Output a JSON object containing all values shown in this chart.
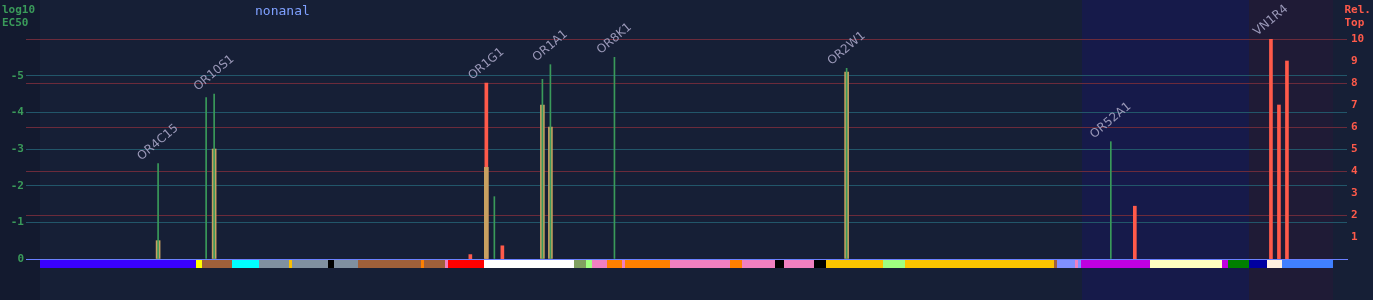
{
  "chart_data": {
    "type": "bar",
    "title": "nonanal",
    "ylabel": "log10 EC50",
    "y2label": "Rel. Top",
    "categories": [
      null,
      null,
      null,
      null,
      null,
      null,
      null,
      null,
      null,
      null,
      null,
      null,
      null,
      null,
      null,
      null,
      null,
      null,
      null,
      null,
      null,
      null,
      null,
      null,
      null,
      null,
      null,
      null,
      null,
      null,
      null,
      null,
      null,
      null,
      null,
      null,
      null,
      null,
      null,
      null,
      null,
      null,
      null,
      null,
      null,
      null,
      null,
      null,
      null,
      null,
      null,
      null,
      null,
      null,
      null,
      null,
      null,
      null,
      null,
      null,
      null,
      null,
      null,
      null,
      null,
      null,
      null,
      null,
      null,
      null,
      null,
      null,
      null,
      null,
      null,
      null,
      null,
      null,
      null,
      null,
      null,
      null,
      null,
      null,
      null,
      null,
      null,
      null,
      null,
      null,
      null,
      null,
      null,
      null,
      null,
      null,
      null,
      null,
      null,
      null,
      null,
      null,
      null,
      null,
      null,
      null,
      null,
      null,
      null,
      null,
      null,
      null,
      null,
      null,
      null,
      null,
      null,
      null,
      null,
      null,
      null,
      null,
      null,
      null,
      null,
      null,
      null,
      null,
      null,
      null,
      null,
      null,
      null,
      null,
      null,
      null,
      null,
      null,
      null,
      null,
      null,
      null,
      null,
      null,
      null,
      null,
      null,
      null,
      null,
      null,
      null,
      null,
      null,
      null,
      null,
      null,
      null,
      null,
      null,
      null,
      null,
      null,
      null,
      null,
      null
    ],
    "series": [
      {
        "color": "#3a9a5a",
        "values": [
          null,
          null,
          null,
          null,
          null,
          null,
          null,
          null,
          null,
          null,
          null,
          null,
          null,
          null,
          null,
          null,
          -2.6,
          null,
          null,
          null,
          null,
          null,
          -4.4,
          -4.5,
          null,
          null,
          null,
          null,
          null,
          null,
          null,
          null,
          null,
          null,
          null,
          null,
          null,
          null,
          null,
          null,
          null,
          null,
          null,
          null,
          null,
          null,
          null,
          null,
          null,
          null,
          null,
          null,
          null,
          null,
          null,
          null,
          null,
          null,
          -1.7,
          null,
          null,
          null,
          null,
          null,
          -4.9,
          -5.3,
          null,
          null,
          null,
          null,
          null,
          null,
          null,
          -5.5,
          null,
          null,
          null,
          null,
          null,
          null,
          null,
          null,
          null,
          null,
          null,
          null,
          null,
          null,
          null,
          null,
          null,
          null,
          null,
          null,
          null,
          null,
          null,
          null,
          null,
          null,
          null,
          null,
          -5.2,
          null,
          null,
          null,
          null,
          null,
          null,
          null,
          null,
          null,
          null,
          null,
          null,
          null,
          null,
          null,
          null,
          null,
          null,
          null,
          null,
          null,
          null,
          null,
          null,
          null,
          null,
          null,
          null,
          null,
          null,
          null,
          null,
          -3.2,
          null,
          null,
          null,
          null,
          null,
          null,
          null,
          null,
          null,
          null,
          null,
          null,
          null,
          null,
          null,
          null,
          null,
          null,
          null,
          null,
          null,
          null,
          null,
          null,
          null,
          null,
          null,
          null,
          null
        ],
        "value_labels": [
          null,
          null,
          null,
          null,
          null,
          null,
          null,
          null,
          null,
          null,
          null,
          null,
          null,
          null,
          null,
          null,
          "OR4C15",
          null,
          null,
          null,
          null,
          null,
          null,
          "OR10S1",
          null,
          null,
          null,
          null,
          null,
          null,
          null,
          null,
          null,
          null,
          null,
          null,
          null,
          null,
          null,
          null,
          null,
          null,
          null,
          null,
          null,
          null,
          null,
          null,
          null,
          null,
          null,
          null,
          null,
          null,
          null,
          null,
          null,
          null,
          null,
          null,
          null,
          null,
          null,
          null,
          null,
          "OR1A1",
          null,
          null,
          null,
          null,
          null,
          null,
          null,
          "OR8K1",
          null,
          null,
          null,
          null,
          null,
          null,
          null,
          null,
          null,
          null,
          null,
          null,
          null,
          null,
          null,
          null,
          null,
          null,
          null,
          null,
          null,
          null,
          null,
          null,
          null,
          null,
          null,
          null,
          "OR2W1",
          null,
          null,
          null,
          null,
          null,
          null,
          null,
          null,
          null,
          null,
          null,
          null,
          null,
          null,
          null,
          null,
          null,
          null,
          null,
          null,
          null,
          null,
          null,
          null,
          null,
          null,
          null,
          null,
          null,
          null,
          null,
          null,
          "OR52A1",
          null,
          null,
          null,
          null,
          null,
          null,
          null,
          null,
          null,
          null,
          null,
          null,
          null,
          null,
          null,
          null,
          null,
          null,
          null,
          null,
          null,
          null,
          null,
          null,
          null,
          null,
          null,
          null,
          null
        ]
      },
      {
        "color": "#c8a060",
        "values": [
          null,
          null,
          null,
          null,
          null,
          null,
          null,
          null,
          null,
          null,
          null,
          null,
          null,
          null,
          null,
          null,
          -0.5,
          null,
          null,
          null,
          null,
          null,
          null,
          -3.0,
          null,
          null,
          null,
          null,
          null,
          null,
          null,
          null,
          null,
          null,
          null,
          null,
          null,
          null,
          null,
          null,
          null,
          null,
          null,
          null,
          null,
          null,
          null,
          null,
          null,
          null,
          null,
          null,
          null,
          null,
          null,
          null,
          null,
          -2.5,
          null,
          null,
          null,
          null,
          null,
          null,
          -4.2,
          -3.6,
          null,
          null,
          null,
          null,
          null,
          null,
          null,
          null,
          null,
          null,
          null,
          null,
          null,
          null,
          null,
          null,
          null,
          null,
          null,
          null,
          null,
          null,
          null,
          null,
          null,
          null,
          null,
          null,
          null,
          null,
          null,
          null,
          null,
          null,
          null,
          null,
          -5.1,
          null,
          null,
          null,
          null,
          null,
          null,
          null,
          null,
          null,
          null,
          null,
          null,
          null,
          null,
          null,
          null,
          null,
          null,
          null,
          null,
          null,
          null,
          null,
          null,
          null,
          null,
          null,
          null,
          null,
          null,
          null,
          null,
          null,
          null,
          null,
          null,
          null,
          null,
          null,
          null,
          null,
          null,
          null,
          null,
          null,
          null,
          null,
          null,
          null,
          null,
          null,
          null,
          null,
          null,
          null,
          null,
          null,
          null,
          null,
          null,
          null,
          null
        ]
      },
      {
        "color": "#ff5a4a",
        "axis": "y2",
        "values": [
          null,
          null,
          null,
          null,
          null,
          null,
          null,
          null,
          null,
          null,
          null,
          null,
          null,
          null,
          null,
          null,
          null,
          null,
          null,
          null,
          null,
          null,
          null,
          null,
          null,
          null,
          null,
          null,
          null,
          null,
          null,
          null,
          null,
          null,
          null,
          null,
          null,
          null,
          null,
          null,
          null,
          null,
          null,
          null,
          null,
          null,
          null,
          null,
          null,
          null,
          null,
          null,
          null,
          null,
          null,
          0.2,
          null,
          8.0,
          null,
          0.6,
          null,
          null,
          null,
          null,
          null,
          null,
          null,
          null,
          null,
          null,
          null,
          null,
          null,
          null,
          null,
          null,
          null,
          null,
          null,
          null,
          null,
          null,
          null,
          null,
          null,
          null,
          null,
          null,
          null,
          null,
          null,
          null,
          null,
          null,
          null,
          null,
          null,
          null,
          null,
          null,
          null,
          null,
          null,
          null,
          null,
          null,
          null,
          null,
          null,
          null,
          null,
          null,
          null,
          null,
          null,
          null,
          null,
          null,
          null,
          null,
          null,
          null,
          null,
          null,
          null,
          null,
          null,
          null,
          null,
          null,
          null,
          null,
          null,
          null,
          null,
          null,
          null,
          null,
          2.4,
          null,
          null,
          null,
          null,
          null,
          null,
          null,
          null,
          null,
          null,
          null,
          null,
          null,
          null,
          null,
          null,
          10,
          7.0,
          9.0,
          null,
          null,
          null,
          null,
          null,
          null,
          null
        ],
        "value_labels": [
          null,
          null,
          null,
          null,
          null,
          null,
          null,
          null,
          null,
          null,
          null,
          null,
          null,
          null,
          null,
          null,
          null,
          null,
          null,
          null,
          null,
          null,
          null,
          null,
          null,
          null,
          null,
          null,
          null,
          null,
          null,
          null,
          null,
          null,
          null,
          null,
          null,
          null,
          null,
          null,
          null,
          null,
          null,
          null,
          null,
          null,
          null,
          null,
          null,
          null,
          null,
          null,
          null,
          null,
          null,
          null,
          null,
          "OR1G1",
          null,
          null,
          null,
          null,
          null,
          null,
          null,
          null,
          null,
          null,
          null,
          null,
          null,
          null,
          null,
          null,
          null,
          null,
          null,
          null,
          null,
          null,
          null,
          null,
          null,
          null,
          null,
          null,
          null,
          null,
          null,
          null,
          null,
          null,
          null,
          null,
          null,
          null,
          null,
          null,
          null,
          null,
          null,
          null,
          null,
          null,
          null,
          null,
          null,
          null,
          null,
          null,
          null,
          null,
          null,
          null,
          null,
          null,
          null,
          null,
          null,
          null,
          null,
          null,
          null,
          null,
          null,
          null,
          null,
          null,
          null,
          null,
          null,
          null,
          null,
          null,
          null,
          null,
          null,
          null,
          null,
          null,
          null,
          null,
          null,
          null,
          null,
          null,
          null,
          null,
          null,
          null,
          null,
          null,
          null,
          null,
          null,
          "VN1R4",
          null,
          null,
          null,
          null,
          null,
          null,
          null,
          null,
          null
        ]
      }
    ],
    "ylim": [
      0,
      -6
    ],
    "yticks": [
      0,
      -1,
      -2,
      -3,
      -4,
      -5
    ],
    "y2lim": [
      0,
      10
    ],
    "y2ticks": [
      1,
      2,
      3,
      4,
      5,
      6,
      7,
      8,
      9,
      10
    ],
    "grid": "y",
    "legend": false
  }
}
